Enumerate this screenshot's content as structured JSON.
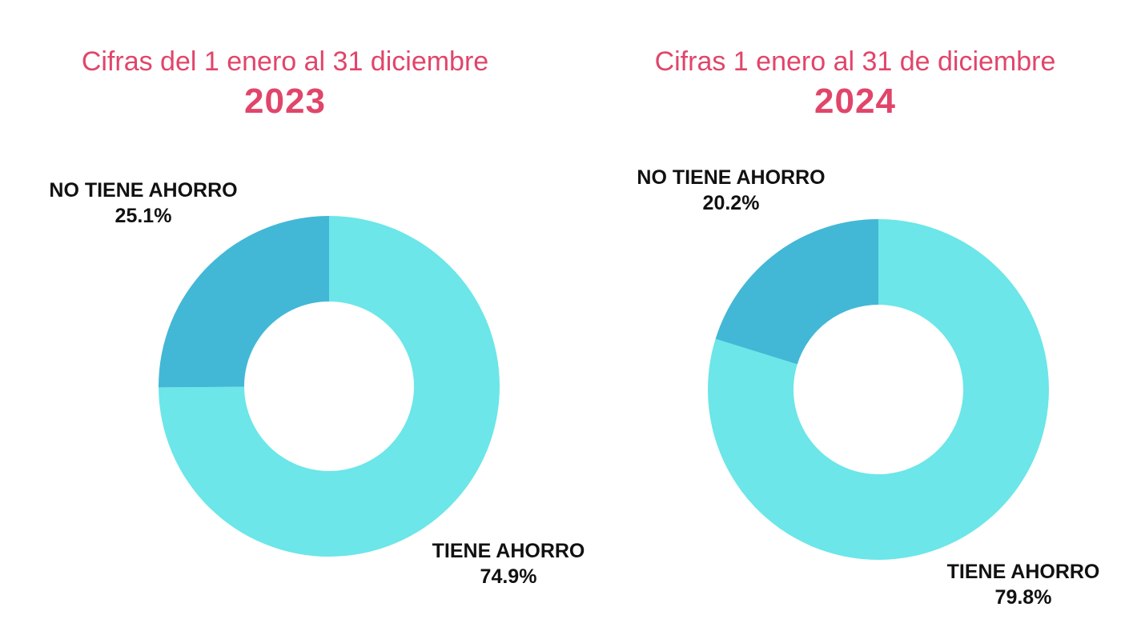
{
  "colors": {
    "title": "#e1456a",
    "tiene": "#6ce6e8",
    "no_tiene": "#42b8d6",
    "label": "#111111"
  },
  "chart_data": [
    {
      "type": "pie",
      "subtitle": "Cifras del 1 enero al 31 diciembre",
      "title": "2023",
      "slices": [
        {
          "label": "TIENE AHORRO",
          "value": 74.9,
          "display": "74.9%",
          "color": "#6ce6e8"
        },
        {
          "label": "NO TIENE AHORRO",
          "value": 25.1,
          "display": "25.1%",
          "color": "#42b8d6"
        }
      ]
    },
    {
      "type": "pie",
      "subtitle": "Cifras 1 enero al 31 de diciembre",
      "title": "2024",
      "slices": [
        {
          "label": "TIENE AHORRO",
          "value": 79.8,
          "display": "79.8%",
          "color": "#6ce6e8"
        },
        {
          "label": "NO TIENE AHORRO",
          "value": 20.2,
          "display": "20.2%",
          "color": "#42b8d6"
        }
      ]
    }
  ]
}
